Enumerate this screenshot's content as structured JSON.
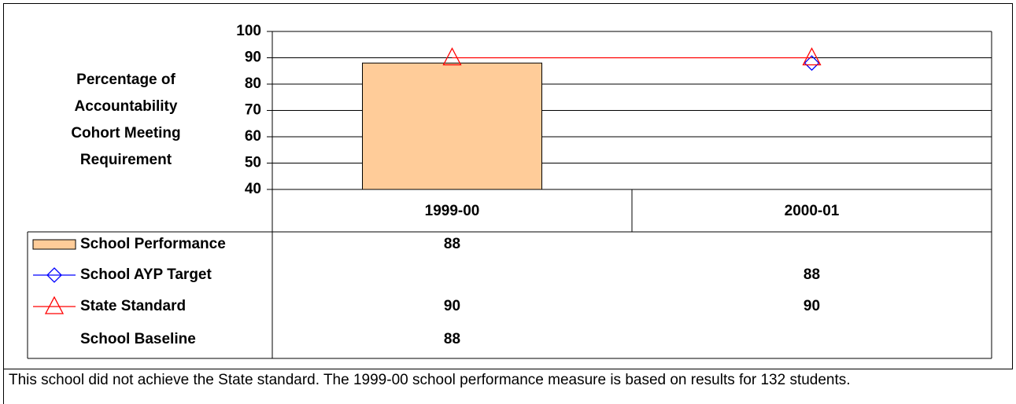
{
  "chart_data": {
    "type": "bar",
    "ylabel": [
      "Percentage of",
      "Accountability",
      "Cohort Meeting",
      "Requirement"
    ],
    "categories": [
      "1999-00",
      "2000-01"
    ],
    "ylim": [
      40,
      100
    ],
    "yticks": [
      40,
      50,
      60,
      70,
      80,
      90,
      100
    ],
    "grid": true,
    "series": [
      {
        "name": "School Performance",
        "mark": "bar",
        "color": "#ffcc99",
        "values": [
          88,
          null
        ]
      },
      {
        "name": "School AYP Target",
        "mark": "diamond",
        "color": "#0000ff",
        "values": [
          null,
          88
        ]
      },
      {
        "name": "State Standard",
        "mark": "triangle",
        "color": "#ff0000",
        "values": [
          90,
          90
        ]
      },
      {
        "name": "School Baseline",
        "values": [
          88,
          null
        ]
      }
    ],
    "caption": "This school did not achieve the State standard. The 1999-00 school performance measure is based on results for 132 students."
  }
}
